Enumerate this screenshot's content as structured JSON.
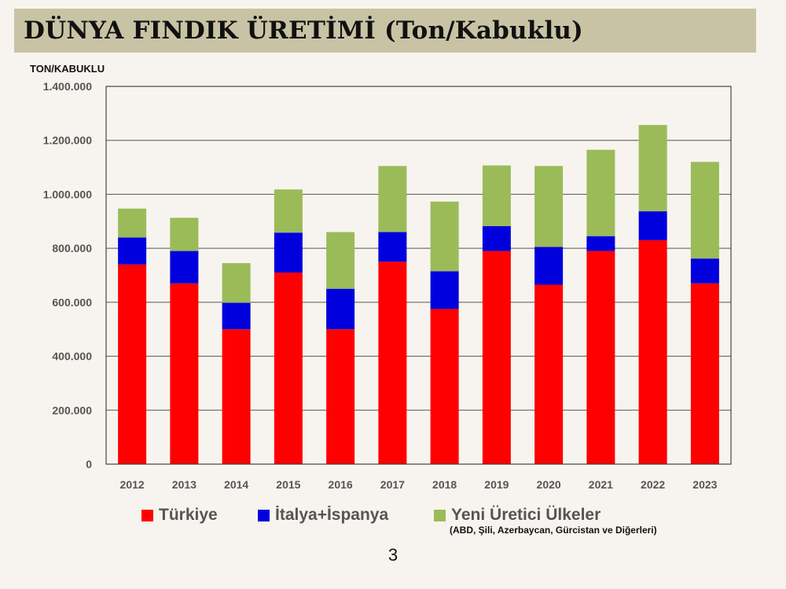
{
  "slide": {
    "title": "DÜNYA FINDIK ÜRETİMİ (Ton/Kabuklu)",
    "page_number": "3"
  },
  "chart_data": {
    "type": "bar",
    "stacked": true,
    "ylabel": "TON/KABUKLU",
    "ylim": [
      0,
      1400000
    ],
    "yticks": [
      0,
      200000,
      400000,
      600000,
      800000,
      1000000,
      1200000,
      1400000
    ],
    "ytick_labels": [
      "0",
      "200.000",
      "400.000",
      "600.000",
      "800.000",
      "1.000.000",
      "1.200.000",
      "1.400.000"
    ],
    "grid": true,
    "legend_position": "bottom",
    "categories": [
      "2012",
      "2013",
      "2014",
      "2015",
      "2016",
      "2017",
      "2018",
      "2019",
      "2020",
      "2021",
      "2022",
      "2023"
    ],
    "series": [
      {
        "name": "Türkiye",
        "color": "#ff0000",
        "values": [
          740000,
          670000,
          500000,
          710000,
          500000,
          750000,
          575000,
          790000,
          665000,
          790000,
          830000,
          670000
        ]
      },
      {
        "name": "İtalya+İspanya",
        "color": "#0000dd",
        "values": [
          100000,
          120000,
          98000,
          148000,
          150000,
          110000,
          140000,
          92000,
          140000,
          55000,
          107000,
          92000
        ]
      },
      {
        "name": "Yeni Üretici Ülkeler",
        "color": "#9bbb59",
        "values": [
          107000,
          123000,
          147000,
          160000,
          210000,
          245000,
          258000,
          225000,
          300000,
          320000,
          320000,
          358000
        ]
      }
    ],
    "legend_note": "(ABD, Şili, Azerbaycan, Gürcistan ve Diğerleri)"
  }
}
